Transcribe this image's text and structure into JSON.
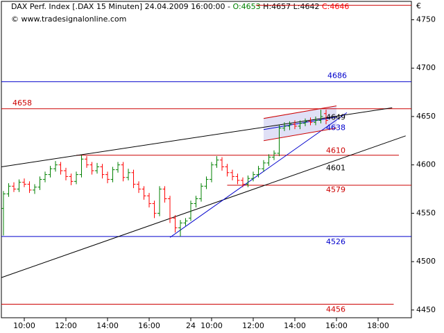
{
  "chart_data": {
    "type": "ohlc",
    "title_parts": [
      {
        "text": "DAX Perf. Index [.DAX  15 Minuten] 24.04.2009 16:00:00 - ",
        "color": "#000000"
      },
      {
        "text": "O:4653",
        "color": "#008000"
      },
      {
        "text": " H:4657",
        "color": "#000000"
      },
      {
        "text": " L:4642",
        "color": "#000000"
      },
      {
        "text": " C:4646",
        "color": "#ff0000"
      }
    ],
    "subtitle": "© www.tradesignalonline.com",
    "currency": "€",
    "up_color": "#008000",
    "down_color": "#ff0000",
    "x": [
      0,
      1,
      2,
      3,
      4,
      5,
      6,
      7,
      8,
      9,
      10,
      11,
      12,
      13,
      14,
      15,
      16,
      17,
      18,
      19,
      20,
      21,
      22,
      23,
      24,
      25,
      26,
      27,
      28,
      29,
      30,
      31,
      32,
      33,
      34,
      35,
      36,
      37,
      38,
      39,
      40,
      41,
      42,
      43,
      44,
      45,
      46,
      47,
      48,
      49,
      50,
      51,
      52,
      53,
      54,
      55,
      56,
      57,
      58,
      59,
      60,
      61,
      62
    ],
    "open": [
      4555,
      4570,
      4578,
      4575,
      4582,
      4580,
      4574,
      4577,
      4585,
      4590,
      4596,
      4600,
      4594,
      4588,
      4583,
      4590,
      4606,
      4600,
      4594,
      4598,
      4590,
      4585,
      4595,
      4600,
      4587,
      4592,
      4580,
      4575,
      4568,
      4560,
      4550,
      4575,
      4565,
      4545,
      4535,
      4540,
      4545,
      4560,
      4565,
      4578,
      4585,
      4600,
      4605,
      4598,
      4592,
      4588,
      4584,
      4580,
      4586,
      4590,
      4596,
      4602,
      4608,
      4612,
      4638,
      4640,
      4642,
      4640,
      4643,
      4645,
      4644,
      4646,
      4653
    ],
    "high": [
      4573,
      4581,
      4582,
      4585,
      4586,
      4583,
      4580,
      4588,
      4593,
      4599,
      4604,
      4603,
      4597,
      4591,
      4593,
      4610,
      4609,
      4603,
      4602,
      4601,
      4593,
      4598,
      4603,
      4603,
      4596,
      4595,
      4583,
      4578,
      4571,
      4563,
      4578,
      4578,
      4568,
      4548,
      4543,
      4545,
      4563,
      4568,
      4581,
      4588,
      4603,
      4609,
      4608,
      4601,
      4595,
      4591,
      4587,
      4589,
      4593,
      4599,
      4605,
      4611,
      4615,
      4641,
      4644,
      4645,
      4646,
      4646,
      4648,
      4649,
      4650,
      4657,
      4657
    ],
    "low": [
      4527,
      4567,
      4572,
      4572,
      4577,
      4571,
      4570,
      4574,
      4582,
      4587,
      4593,
      4590,
      4584,
      4579,
      4580,
      4587,
      4597,
      4590,
      4591,
      4586,
      4581,
      4582,
      4592,
      4583,
      4584,
      4576,
      4571,
      4564,
      4556,
      4545,
      4547,
      4561,
      4540,
      4530,
      4526,
      4537,
      4542,
      4556,
      4562,
      4575,
      4582,
      4597,
      4594,
      4588,
      4584,
      4580,
      4577,
      4577,
      4583,
      4587,
      4593,
      4599,
      4605,
      4609,
      4635,
      4636,
      4637,
      4637,
      4640,
      4641,
      4641,
      4643,
      4642
    ],
    "close": [
      4570,
      4578,
      4575,
      4582,
      4580,
      4574,
      4577,
      4585,
      4590,
      4596,
      4600,
      4594,
      4588,
      4583,
      4590,
      4606,
      4600,
      4594,
      4598,
      4590,
      4585,
      4595,
      4600,
      4587,
      4592,
      4580,
      4575,
      4568,
      4560,
      4550,
      4575,
      4565,
      4545,
      4535,
      4540,
      4542,
      4560,
      4565,
      4578,
      4585,
      4600,
      4605,
      4598,
      4592,
      4588,
      4584,
      4580,
      4586,
      4590,
      4596,
      4602,
      4608,
      4612,
      4638,
      4640,
      4642,
      4640,
      4643,
      4645,
      4644,
      4646,
      4650,
      4646
    ],
    "xlim": [
      -0.4,
      78.4
    ],
    "ylim": [
      4442,
      4769
    ],
    "xticks": [
      {
        "value": 4,
        "label": "10:00"
      },
      {
        "value": 12,
        "label": "12:00"
      },
      {
        "value": 20,
        "label": "14:00"
      },
      {
        "value": 28,
        "label": "16:00"
      },
      {
        "value": 36,
        "label": "24"
      },
      {
        "value": 40,
        "label": "10:00"
      },
      {
        "value": 48,
        "label": "12:00"
      },
      {
        "value": 56,
        "label": "14:00"
      },
      {
        "value": 64,
        "label": "16:00"
      },
      {
        "value": 72,
        "label": "18:00"
      }
    ],
    "yticks": [
      4450,
      4500,
      4550,
      4600,
      4650,
      4700,
      4750
    ],
    "hlines": [
      {
        "value": 4765,
        "color": "#cc0000",
        "from": 48.5,
        "to": 78.4
      },
      {
        "value": 4686,
        "color": "#0000cc",
        "from": -0.4,
        "to": 78.4
      },
      {
        "value": 4658,
        "color": "#cc0000",
        "from": -0.4,
        "to": 78.4
      },
      {
        "value": 4610,
        "color": "#cc0000",
        "from": 14,
        "to": 76
      },
      {
        "value": 4579,
        "color": "#cc0000",
        "from": 43,
        "to": 78.4
      },
      {
        "value": 4526,
        "color": "#0000cc",
        "from": -0.4,
        "to": 78.4
      },
      {
        "value": 4456,
        "color": "#cc0000",
        "from": -0.4,
        "to": 75
      }
    ],
    "level_labels": [
      {
        "value": 4686,
        "color": "#0000cc"
      },
      {
        "value": 4658,
        "color": "#cc0000"
      },
      {
        "value": 4649,
        "color": "#000000"
      },
      {
        "value": 4638,
        "color": "#0000cc"
      },
      {
        "value": 4610,
        "color": "#cc0000"
      },
      {
        "value": 4601,
        "color": "#000000"
      },
      {
        "value": 4579,
        "color": "#cc0000"
      },
      {
        "value": 4526,
        "color": "#0000cc"
      },
      {
        "value": 4456,
        "color": "#cc0000"
      }
    ],
    "trendlines": [
      {
        "color": "#000000",
        "x": [
          -0.4,
          74.7
        ],
        "y": [
          4598,
          4659
        ]
      },
      {
        "color": "#000000",
        "x": [
          -0.4,
          77.3
        ],
        "y": [
          4483.5,
          4630
        ]
      },
      {
        "color": "#0000cc",
        "x": [
          32,
          66
        ],
        "y": [
          4525,
          4654
        ]
      },
      {
        "color": "#cc0000",
        "x": [
          50,
          64
        ],
        "y": [
          4648,
          4661
        ]
      },
      {
        "color": "#cc0000",
        "x": [
          50,
          64
        ],
        "y": [
          4625,
          4638
        ]
      },
      {
        "color": "#0000cc",
        "x": [
          50,
          64
        ],
        "y": [
          4636.5,
          4649.5
        ]
      }
    ],
    "channel": {
      "color": "#d8d8f4",
      "x": [
        50,
        64
      ],
      "top": [
        4648,
        4661
      ],
      "bottom": [
        4625,
        4638
      ]
    }
  }
}
